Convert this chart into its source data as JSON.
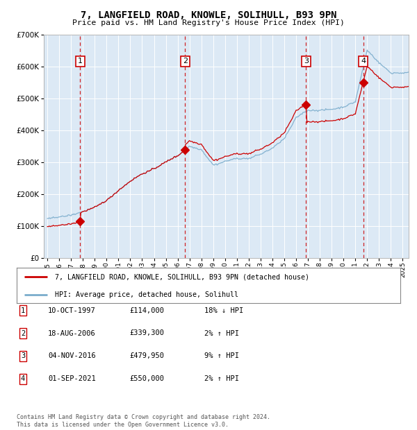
{
  "title1": "7, LANGFIELD ROAD, KNOWLE, SOLIHULL, B93 9PN",
  "title2": "Price paid vs. HM Land Registry's House Price Index (HPI)",
  "plot_bg_color": "#dce9f5",
  "line_color_red": "#cc0000",
  "line_color_blue": "#7aaccc",
  "sale_dates_yr": [
    1997.78,
    2006.63,
    2016.84,
    2021.67
  ],
  "sale_prices": [
    114000,
    339300,
    479950,
    550000
  ],
  "sale_labels": [
    "1",
    "2",
    "3",
    "4"
  ],
  "legend_label_red": "7, LANGFIELD ROAD, KNOWLE, SOLIHULL, B93 9PN (detached house)",
  "legend_label_blue": "HPI: Average price, detached house, Solihull",
  "table_rows": [
    [
      "1",
      "10-OCT-1997",
      "£114,000",
      "18% ↓ HPI"
    ],
    [
      "2",
      "18-AUG-2006",
      "£339,300",
      "2% ↑ HPI"
    ],
    [
      "3",
      "04-NOV-2016",
      "£479,950",
      "9% ↑ HPI"
    ],
    [
      "4",
      "01-SEP-2021",
      "£550,000",
      "2% ↑ HPI"
    ]
  ],
  "footer": "Contains HM Land Registry data © Crown copyright and database right 2024.\nThis data is licensed under the Open Government Licence v3.0.",
  "ylim": [
    0,
    700000
  ],
  "xlim_start": 1994.7,
  "xlim_end": 2025.5,
  "yticks": [
    0,
    100000,
    200000,
    300000,
    400000,
    500000,
    600000,
    700000
  ]
}
